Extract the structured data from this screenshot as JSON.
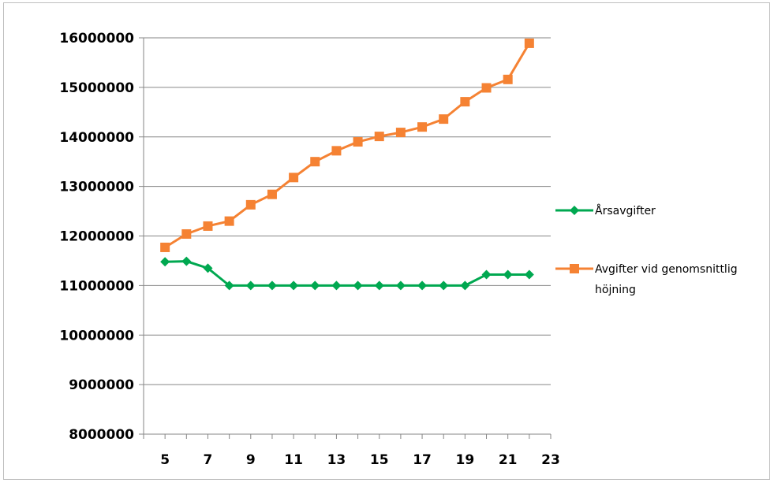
{
  "chart_data": {
    "type": "line",
    "title": "",
    "xlabel": "",
    "ylabel": "",
    "xlim": [
      4,
      23
    ],
    "ylim": [
      8000000,
      16000000
    ],
    "x_ticks": [
      5,
      7,
      9,
      11,
      13,
      15,
      17,
      19,
      21,
      23
    ],
    "y_ticks": [
      8000000,
      9000000,
      10000000,
      11000000,
      12000000,
      13000000,
      14000000,
      15000000,
      16000000
    ],
    "y_tick_labels": [
      "8000000",
      "9000000",
      "10000000",
      "11000000",
      "12000000",
      "13000000",
      "14000000",
      "15000000",
      "16000000"
    ],
    "grid": "horizontal",
    "legend_position": "right",
    "x": [
      5,
      6,
      7,
      8,
      9,
      10,
      11,
      12,
      13,
      14,
      15,
      16,
      17,
      18,
      19,
      20,
      21,
      22
    ],
    "series": [
      {
        "name": "Årsavgifter",
        "color": "#00a850",
        "marker": "diamond",
        "values": [
          11480000,
          11490000,
          11350000,
          11000000,
          11000000,
          11000000,
          11000000,
          11000000,
          11000000,
          11000000,
          11000000,
          11000000,
          11000000,
          11000000,
          11000000,
          11220000,
          11220000,
          11220000
        ]
      },
      {
        "name": "Avgifter vid genomsnittlig höjning",
        "name_lines": [
          "Avgifter vid genomsnittlig",
          "höjning"
        ],
        "color": "#f58233",
        "marker": "square",
        "values": [
          11770000,
          12040000,
          12200000,
          12300000,
          12630000,
          12840000,
          13180000,
          13500000,
          13720000,
          13900000,
          14010000,
          14090000,
          14200000,
          14360000,
          14710000,
          14990000,
          15160000,
          15890000
        ]
      }
    ]
  }
}
